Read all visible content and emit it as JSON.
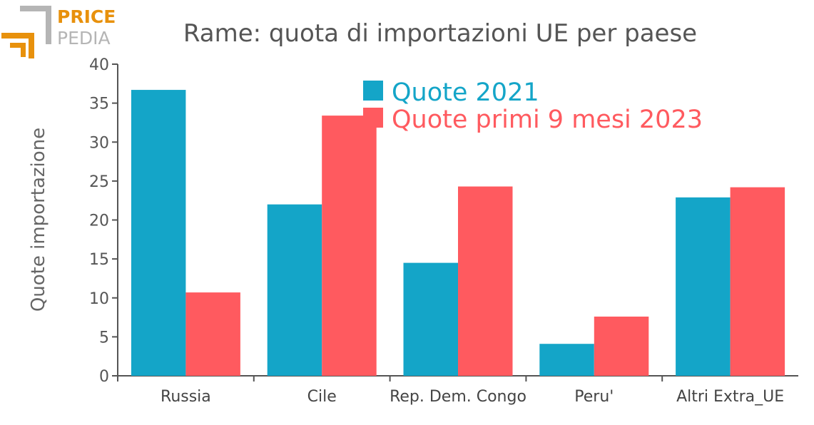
{
  "logo": {
    "line1": "PRICE",
    "line2": "PEDIA",
    "orange": "#e8910c",
    "gray": "#b5b5b5"
  },
  "chart_data": {
    "type": "bar",
    "title": "Rame: quota di importazioni UE per paese",
    "xlabel": "",
    "ylabel": "Quote importazione",
    "ylim": [
      0,
      40
    ],
    "yticks": [
      0,
      5,
      10,
      15,
      20,
      25,
      30,
      35,
      40
    ],
    "categories": [
      "Russia",
      "Cile",
      "Rep. Dem. Congo",
      "Peru'",
      "Altri Extra_UE"
    ],
    "series": [
      {
        "name": "Quote 2021",
        "color": "#14a5c8",
        "values": [
          36.7,
          22.0,
          14.5,
          4.1,
          22.9
        ]
      },
      {
        "name": "Quote primi 9 mesi 2023",
        "color": "#ff5a5f",
        "values": [
          10.7,
          33.4,
          24.3,
          7.6,
          24.2
        ]
      }
    ],
    "legend_position": "top-center",
    "grid": false
  }
}
